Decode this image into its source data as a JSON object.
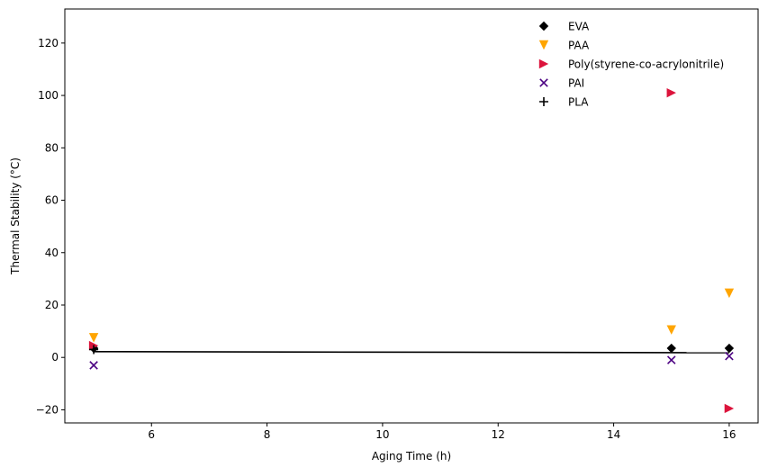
{
  "chart_data": {
    "type": "scatter",
    "title": "",
    "xlabel": "Aging Time (h)",
    "ylabel": "Thermal Stability (°C)",
    "xlim": [
      4.5,
      16.5
    ],
    "ylim": [
      -25,
      133
    ],
    "xticks": [
      6,
      8,
      10,
      12,
      14,
      16
    ],
    "yticks": [
      -20,
      0,
      20,
      40,
      60,
      80,
      100,
      120
    ],
    "xtick_labels": [
      "6",
      "8",
      "10",
      "12",
      "14",
      "16"
    ],
    "ytick_labels": [
      "−20",
      "0",
      "20",
      "40",
      "60",
      "80",
      "100",
      "120"
    ],
    "grid": false,
    "legend_position": "top-right",
    "series": [
      {
        "name": "EVA",
        "marker": "diamond",
        "color": "#000000",
        "x": [
          5,
          15,
          16
        ],
        "y": [
          3.5,
          3.5,
          3.5
        ]
      },
      {
        "name": "PAA",
        "marker": "triangle-down",
        "color": "#FFA500",
        "x": [
          5,
          15,
          16
        ],
        "y": [
          7.5,
          10.5,
          24.5
        ]
      },
      {
        "name": "Poly(styrene-co-acrylonitrile)",
        "marker": "triangle-right",
        "color": "#DC143C",
        "x": [
          5,
          15,
          16
        ],
        "y": [
          4.5,
          101,
          -19.5
        ]
      },
      {
        "name": "PAI",
        "marker": "x",
        "color": "#4B0082",
        "x": [
          5,
          15,
          16
        ],
        "y": [
          -3,
          -1,
          0.5
        ]
      },
      {
        "name": "PLA",
        "marker": "plus",
        "color": "#000000",
        "x": [
          5
        ],
        "y": [
          3
        ]
      }
    ],
    "trend_line": {
      "color": "#000000",
      "x": [
        5,
        16
      ],
      "y": [
        2.2,
        1.8
      ]
    }
  }
}
